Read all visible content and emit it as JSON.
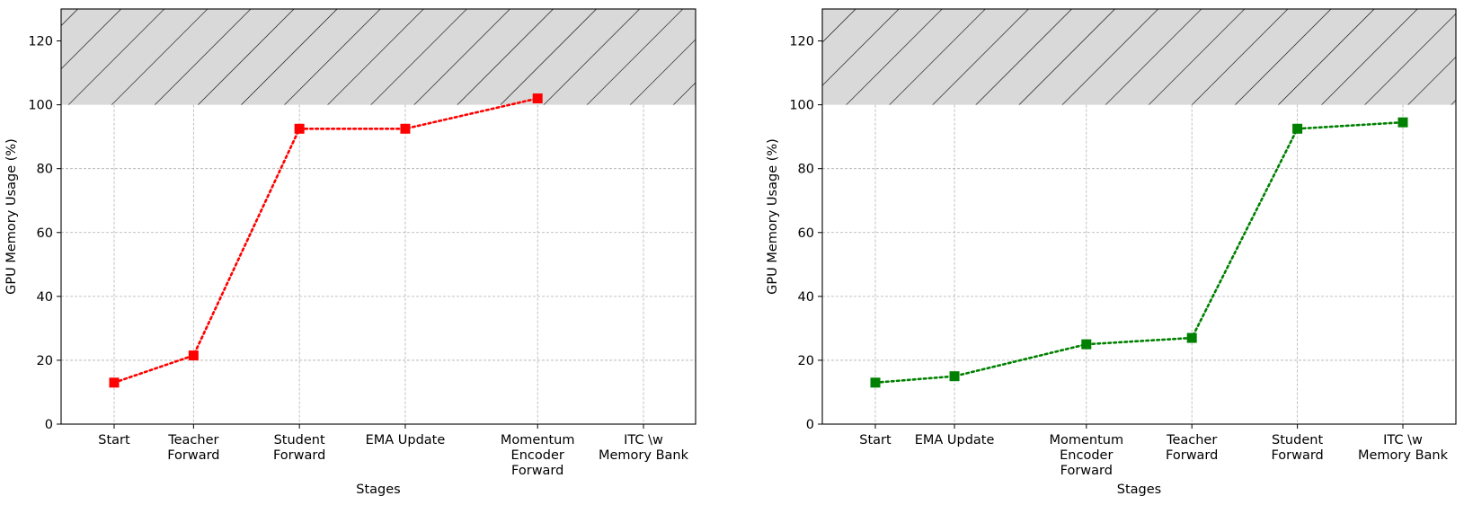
{
  "colors": {
    "left_series": "#ff0000",
    "right_series": "#008000",
    "shade_fill": "#d9d9d9",
    "hatch": "#000000",
    "grid": "#b0b0b0"
  },
  "chart_data": [
    {
      "type": "line",
      "title": "",
      "xlabel": "Stages",
      "ylabel": "GPU Memory Usage (%)",
      "ylim": [
        0,
        130
      ],
      "yticks": [
        0,
        20,
        40,
        60,
        80,
        100,
        120
      ],
      "grid": true,
      "shaded_region": {
        "from": 100,
        "to": 130,
        "pattern": "diagonal-hatch",
        "color": "#d9d9d9"
      },
      "categories": [
        [
          "Start"
        ],
        [
          "Teacher",
          "Forward"
        ],
        [
          "Student",
          "Forward"
        ],
        [
          "EMA Update"
        ],
        [
          "Momentum",
          "Encoder",
          "Forward"
        ],
        [
          "ITC \\w",
          "Memory Bank"
        ]
      ],
      "x": [
        0,
        0.75,
        1.75,
        2.75,
        4,
        5
      ],
      "series": [
        {
          "color": "#ff0000",
          "marker": "square",
          "linestyle": "dotted",
          "values": [
            13,
            21.5,
            92.5,
            92.5,
            102,
            null
          ]
        }
      ]
    },
    {
      "type": "line",
      "title": "",
      "xlabel": "Stages",
      "ylabel": "GPU Memory Usage (%)",
      "ylim": [
        0,
        130
      ],
      "yticks": [
        0,
        20,
        40,
        60,
        80,
        100,
        120
      ],
      "grid": true,
      "shaded_region": {
        "from": 100,
        "to": 130,
        "pattern": "diagonal-hatch",
        "color": "#d9d9d9"
      },
      "categories": [
        [
          "Start"
        ],
        [
          "EMA Update"
        ],
        [
          "Momentum",
          "Encoder",
          "Forward"
        ],
        [
          "Teacher",
          "Forward"
        ],
        [
          "Student",
          "Forward"
        ],
        [
          "ITC \\w",
          "Memory Bank"
        ]
      ],
      "x": [
        0,
        0.75,
        2,
        3,
        4,
        5
      ],
      "series": [
        {
          "color": "#008000",
          "marker": "square",
          "linestyle": "dotted",
          "values": [
            13,
            15,
            25,
            27,
            92.5,
            94.5
          ]
        }
      ]
    }
  ]
}
